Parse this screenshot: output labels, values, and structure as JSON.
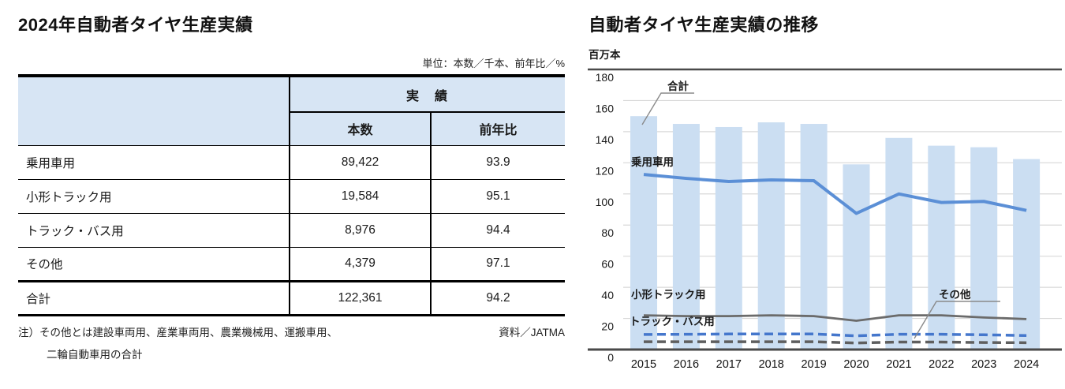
{
  "left_panel": {
    "title": "2024年自動者タイヤ生産実績",
    "unit_note": "単位：本数／千本、前年比／%",
    "table": {
      "group_header": "実　績",
      "columns": [
        "本数",
        "前年比"
      ],
      "rows": [
        {
          "label": "乗用車用",
          "units": "89,422",
          "yoy": "93.9"
        },
        {
          "label": "小形トラック用",
          "units": "19,584",
          "yoy": "95.1"
        },
        {
          "label": "トラック・バス用",
          "units": "8,976",
          "yoy": "94.4"
        },
        {
          "label": "その他",
          "units": "4,379",
          "yoy": "97.1"
        },
        {
          "label": "合計",
          "units": "122,361",
          "yoy": "94.2"
        }
      ]
    },
    "footnote_line1": "注）その他とは建設車両用、産業車両用、農業機械用、運搬車用、",
    "footnote_line2": "二輪自動車用の合計",
    "source": "資料／JATMA"
  },
  "right_panel": {
    "title": "自動者タイヤ生産実績の推移",
    "y_axis_unit": "百万本"
  },
  "chart_data": {
    "type": "bar+line",
    "title": "自動者タイヤ生産実績の推移",
    "xlabel": "",
    "ylabel": "百万本",
    "ylim": [
      0,
      180
    ],
    "ytick_step": 20,
    "grid": true,
    "legend_position": "inline-labels",
    "categories": [
      2015,
      2016,
      2017,
      2018,
      2019,
      2020,
      2021,
      2022,
      2023,
      2024
    ],
    "series": [
      {
        "id": "total",
        "name": "合計",
        "type": "bar",
        "style": "solid",
        "color": "#cbdef2",
        "values": [
          150,
          145,
          143,
          146,
          145,
          119,
          136,
          131,
          130,
          122.4
        ]
      },
      {
        "id": "passenger-car",
        "name": "乗用車用",
        "type": "line",
        "style": "solid",
        "color": "#5b8fd6",
        "values": [
          112.5,
          110,
          108,
          109,
          108.5,
          87.5,
          100,
          94.5,
          95.2,
          89.4
        ]
      },
      {
        "id": "small-truck",
        "name": "小形トラック用",
        "type": "line",
        "style": "solid",
        "color": "#6b6b6b",
        "values": [
          22,
          21.5,
          21.5,
          22,
          21.5,
          18.5,
          22,
          22,
          20.6,
          19.6
        ]
      },
      {
        "id": "truck-bus",
        "name": "トラック・バス用",
        "type": "line",
        "style": "dashed",
        "color": "#4577cc",
        "values": [
          9.7,
          9.8,
          10,
          10,
          10,
          8.8,
          9.8,
          9.8,
          9.5,
          9.0
        ]
      },
      {
        "id": "other",
        "name": "その他",
        "type": "line",
        "style": "dashed",
        "color": "#5f5f5f",
        "values": [
          5,
          5,
          5,
          5,
          5,
          4.2,
          4.8,
          4.8,
          4.5,
          4.4
        ]
      }
    ],
    "colors": {
      "axis": "#4a4a4a",
      "gridline": "#d8d8d8",
      "header_fill": "#d7e5f4"
    }
  }
}
